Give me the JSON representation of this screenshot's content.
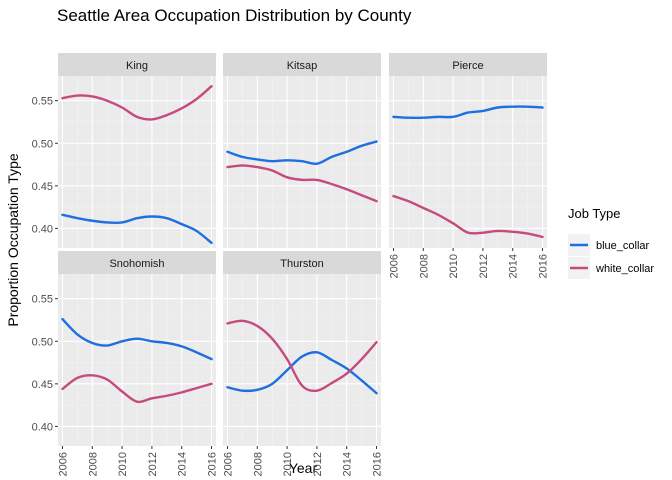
{
  "chart_data": {
    "type": "line",
    "title": "Seattle Area Occupation Distribution by County",
    "xlabel": "Year",
    "ylabel": "Proportion Occupation Type",
    "xlim": [
      2005.7,
      2016.3
    ],
    "ylim": [
      0.377,
      0.579
    ],
    "x_ticks": [
      "2006",
      "2008",
      "2010",
      "2012",
      "2014",
      "2016"
    ],
    "y_ticks": [
      "0.40",
      "0.45",
      "0.50",
      "0.55"
    ],
    "legend": {
      "title": "Job Type",
      "position": "right",
      "entries": [
        {
          "label": "blue_collar",
          "color": "#1f6fe0"
        },
        {
          "label": "white_collar",
          "color": "#c54b7f"
        }
      ]
    },
    "grid": true,
    "facets": [
      {
        "name": "King",
        "series": [
          {
            "job": "blue_collar",
            "x": [
              2006,
              2007,
              2008,
              2009,
              2010,
              2011,
              2012,
              2013,
              2014,
              2015,
              2016
            ],
            "y": [
              0.416,
              0.412,
              0.409,
              0.407,
              0.407,
              0.412,
              0.414,
              0.412,
              0.405,
              0.397,
              0.383
            ]
          },
          {
            "job": "white_collar",
            "x": [
              2006,
              2007,
              2008,
              2009,
              2010,
              2011,
              2012,
              2013,
              2014,
              2015,
              2016
            ],
            "y": [
              0.553,
              0.556,
              0.555,
              0.55,
              0.542,
              0.531,
              0.528,
              0.533,
              0.541,
              0.552,
              0.567
            ]
          }
        ]
      },
      {
        "name": "Kitsap",
        "series": [
          {
            "job": "blue_collar",
            "x": [
              2006,
              2007,
              2008,
              2009,
              2010,
              2011,
              2012,
              2013,
              2014,
              2015,
              2016
            ],
            "y": [
              0.49,
              0.484,
              0.481,
              0.479,
              0.48,
              0.479,
              0.476,
              0.484,
              0.49,
              0.497,
              0.502
            ]
          },
          {
            "job": "white_collar",
            "x": [
              2006,
              2007,
              2008,
              2009,
              2010,
              2011,
              2012,
              2013,
              2014,
              2015,
              2016
            ],
            "y": [
              0.472,
              0.474,
              0.472,
              0.468,
              0.46,
              0.457,
              0.457,
              0.452,
              0.446,
              0.439,
              0.432
            ]
          }
        ]
      },
      {
        "name": "Pierce",
        "series": [
          {
            "job": "blue_collar",
            "x": [
              2006,
              2007,
              2008,
              2009,
              2010,
              2011,
              2012,
              2013,
              2014,
              2015,
              2016
            ],
            "y": [
              0.531,
              0.53,
              0.53,
              0.531,
              0.531,
              0.536,
              0.538,
              0.542,
              0.543,
              0.543,
              0.542
            ]
          },
          {
            "job": "white_collar",
            "x": [
              2006,
              2007,
              2008,
              2009,
              2010,
              2011,
              2012,
              2013,
              2014,
              2015,
              2016
            ],
            "y": [
              0.438,
              0.432,
              0.424,
              0.416,
              0.406,
              0.395,
              0.395,
              0.397,
              0.396,
              0.394,
              0.39
            ]
          }
        ]
      },
      {
        "name": "Snohomish",
        "series": [
          {
            "job": "blue_collar",
            "x": [
              2006,
              2007,
              2008,
              2009,
              2010,
              2011,
              2012,
              2013,
              2014,
              2015,
              2016
            ],
            "y": [
              0.526,
              0.508,
              0.498,
              0.495,
              0.5,
              0.503,
              0.5,
              0.498,
              0.494,
              0.487,
              0.479
            ]
          },
          {
            "job": "white_collar",
            "x": [
              2006,
              2007,
              2008,
              2009,
              2010,
              2011,
              2012,
              2013,
              2014,
              2015,
              2016
            ],
            "y": [
              0.444,
              0.457,
              0.46,
              0.455,
              0.441,
              0.429,
              0.433,
              0.436,
              0.44,
              0.445,
              0.45
            ]
          }
        ]
      },
      {
        "name": "Thurston",
        "series": [
          {
            "job": "blue_collar",
            "x": [
              2006,
              2007,
              2008,
              2009,
              2010,
              2011,
              2012,
              2013,
              2014,
              2015,
              2016
            ],
            "y": [
              0.446,
              0.442,
              0.443,
              0.45,
              0.466,
              0.482,
              0.487,
              0.478,
              0.468,
              0.454,
              0.439
            ]
          },
          {
            "job": "white_collar",
            "x": [
              2006,
              2007,
              2008,
              2009,
              2010,
              2011,
              2012,
              2013,
              2014,
              2015,
              2016
            ],
            "y": [
              0.521,
              0.524,
              0.518,
              0.503,
              0.479,
              0.448,
              0.442,
              0.451,
              0.462,
              0.479,
              0.499
            ]
          }
        ]
      }
    ]
  }
}
